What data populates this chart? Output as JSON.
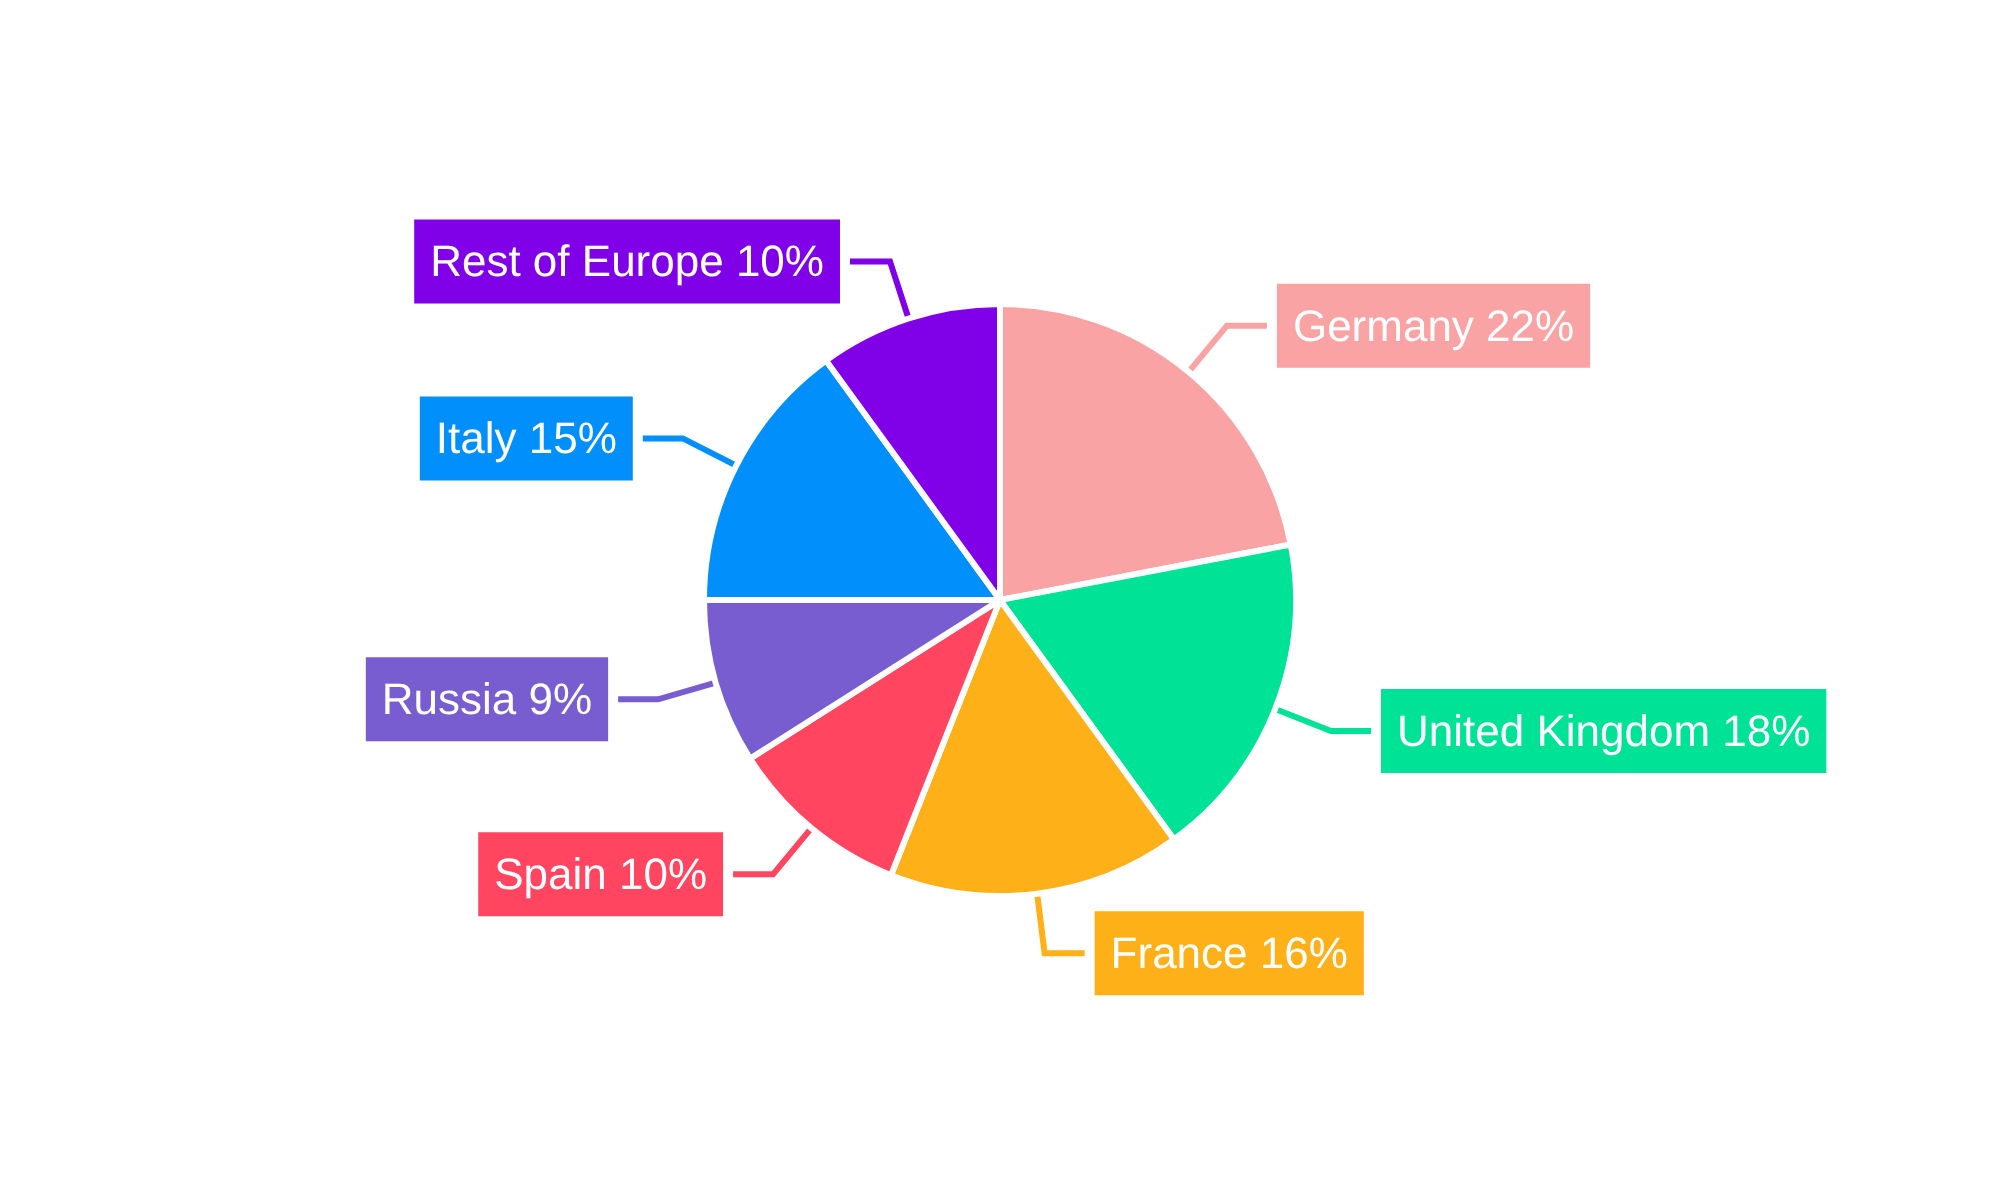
{
  "chart_data": {
    "type": "pie",
    "categories": [
      "Germany",
      "United Kingdom",
      "France",
      "Spain",
      "Russia",
      "Italy",
      "Rest of Europe"
    ],
    "values": [
      22,
      18,
      16,
      10,
      9,
      15,
      10
    ],
    "value_labels": [
      "22%",
      "18%",
      "16%",
      "10%",
      "9%",
      "15%",
      "10%"
    ],
    "colors": [
      "#f9a3a4",
      "#00e396",
      "#feb019",
      "#ff4560",
      "#775dd0",
      "#008ffb",
      "#8000e8"
    ],
    "legend": false
  }
}
